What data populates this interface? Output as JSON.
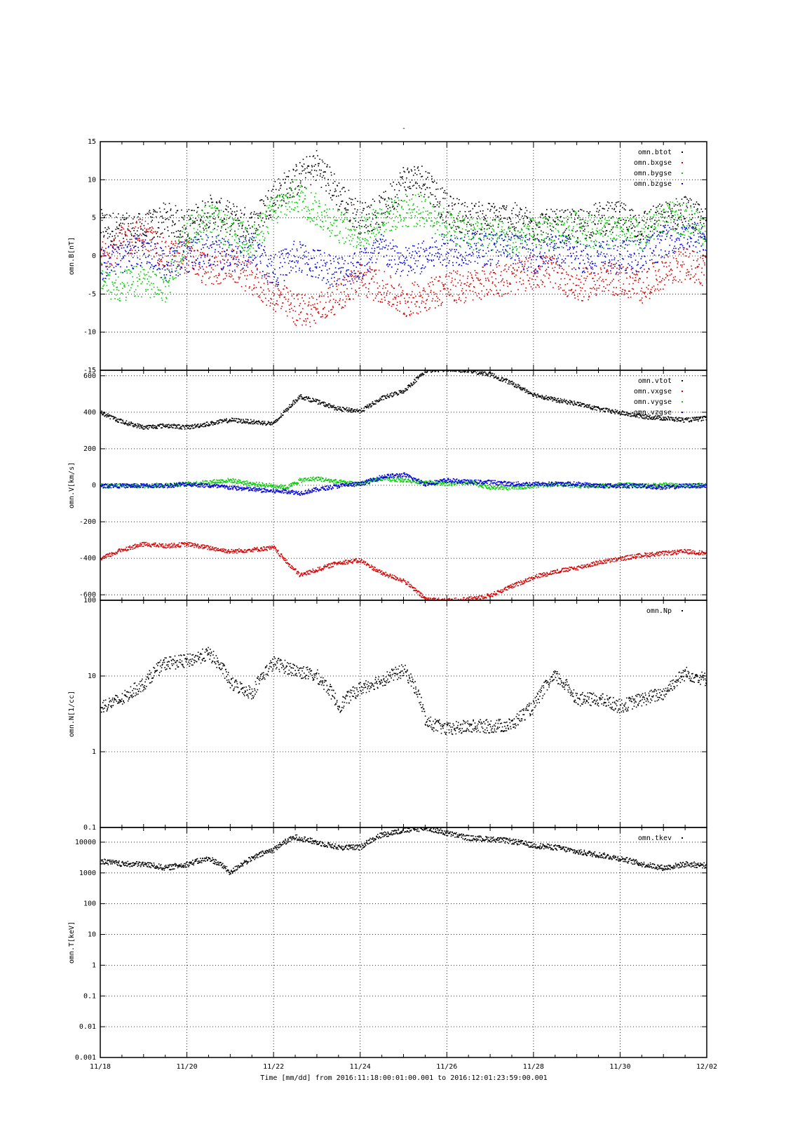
{
  "figure": {
    "title": "-",
    "xaxis_label": "Time [mm/dd]  from 2016:11:18:00:01:00.001  to  2016:12:01:23:59:00.001",
    "colors": {
      "black": "#000000",
      "red": "#d40000",
      "green": "#00cc00",
      "blue": "#0000dd"
    }
  },
  "chart_data": [
    {
      "type": "scatter",
      "ylabel": "omn.B[nT]",
      "ylim": [
        -15,
        15
      ],
      "yscale": "linear",
      "yticks": [
        -15,
        -10,
        -5,
        0,
        5,
        10,
        15
      ],
      "ytick_labels": [
        "-15",
        "-10",
        "-5",
        "0",
        "5",
        "10",
        "15"
      ],
      "x_range_days": [
        0,
        14
      ],
      "grid": true,
      "legend_position": "top-right",
      "series": [
        {
          "name": "omn.btot",
          "color": "#000000",
          "x": [
            0,
            0.5,
            1,
            1.5,
            2,
            2.5,
            3,
            3.5,
            4,
            4.5,
            5,
            5.5,
            6,
            6.5,
            7,
            7.5,
            8,
            8.5,
            9,
            9.5,
            10,
            10.5,
            11,
            11.5,
            12,
            12.5,
            13,
            13.5,
            14
          ],
          "values": [
            4,
            3.5,
            3.5,
            5,
            4,
            6,
            5,
            4,
            8,
            10,
            12,
            8,
            5,
            6,
            10,
            10,
            6,
            5,
            5,
            5,
            4,
            4,
            4,
            5,
            5,
            4,
            5,
            6,
            4
          ]
        },
        {
          "name": "omn.bxgse",
          "color": "#d40000",
          "x": [
            0,
            0.5,
            1,
            1.5,
            2,
            2.5,
            3,
            3.5,
            4,
            4.5,
            5,
            5.5,
            6,
            6.5,
            7,
            7.5,
            8,
            8.5,
            9,
            9.5,
            10,
            10.5,
            11,
            11.5,
            12,
            12.5,
            13,
            13.5,
            14
          ],
          "values": [
            0,
            2,
            3,
            0,
            0,
            -2,
            -1,
            -3,
            -5,
            -7,
            -7,
            -5,
            -3,
            -4,
            -6,
            -5,
            -4,
            -4,
            -3,
            -3,
            -2,
            -2,
            -4,
            -3,
            -3,
            -4,
            -2,
            -1,
            -2
          ]
        },
        {
          "name": "omn.bygse",
          "color": "#00cc00",
          "x": [
            0,
            0.5,
            1,
            1.5,
            2,
            2.5,
            3,
            3.5,
            4,
            4.5,
            5,
            5.5,
            6,
            6.5,
            7,
            7.5,
            8,
            8.5,
            9,
            9.5,
            10,
            10.5,
            11,
            11.5,
            12,
            12.5,
            13,
            13.5,
            14
          ],
          "values": [
            -3,
            -4,
            -3,
            -4,
            3,
            5,
            3,
            2,
            6,
            8,
            6,
            4,
            3,
            5,
            6,
            6,
            4,
            3,
            3,
            2,
            3,
            3,
            4,
            3,
            3,
            3,
            5,
            5,
            3
          ]
        },
        {
          "name": "omn.bzgse",
          "color": "#0000dd",
          "x": [
            0,
            0.5,
            1,
            1.5,
            2,
            2.5,
            3,
            3.5,
            4,
            4.5,
            5,
            5.5,
            6,
            6.5,
            7,
            7.5,
            8,
            8.5,
            9,
            9.5,
            10,
            10.5,
            11,
            11.5,
            12,
            12.5,
            13,
            13.5,
            14
          ],
          "values": [
            -1,
            0,
            1,
            -1,
            0,
            1,
            0,
            1,
            -2,
            0,
            -1,
            -2,
            -1,
            1,
            -1,
            0,
            1,
            1,
            1,
            1,
            0,
            1,
            0,
            0,
            0,
            0,
            2,
            3,
            2
          ]
        }
      ]
    },
    {
      "type": "scatter",
      "ylabel": "omn.V[km/s]",
      "ylim": [
        -630,
        630
      ],
      "yscale": "linear",
      "yticks": [
        -600,
        -400,
        -200,
        0,
        200,
        400,
        600
      ],
      "ytick_labels": [
        "-600",
        "-400",
        "-200",
        "0",
        "200",
        "400",
        "600"
      ],
      "x_range_days": [
        0,
        14
      ],
      "grid": true,
      "legend_position": "top-right",
      "series": [
        {
          "name": "omn.vtot",
          "color": "#000000",
          "x": [
            0,
            0.5,
            1,
            1.5,
            2,
            2.5,
            3,
            3.5,
            4,
            4.3,
            4.6,
            5,
            5.5,
            6,
            6.5,
            7,
            7.5,
            8,
            8.5,
            9,
            9.5,
            10,
            10.5,
            11,
            11.5,
            12,
            12.5,
            13,
            13.5,
            14
          ],
          "values": [
            400,
            350,
            320,
            330,
            320,
            340,
            360,
            350,
            340,
            420,
            490,
            460,
            420,
            410,
            480,
            520,
            630,
            640,
            630,
            610,
            560,
            500,
            470,
            450,
            420,
            400,
            380,
            370,
            360,
            370
          ]
        },
        {
          "name": "omn.vxgse",
          "color": "#d40000",
          "x": [
            0,
            0.5,
            1,
            1.5,
            2,
            2.5,
            3,
            3.5,
            4,
            4.3,
            4.6,
            5,
            5.5,
            6,
            6.5,
            7,
            7.5,
            8,
            8.5,
            9,
            9.5,
            10,
            10.5,
            11,
            11.5,
            12,
            12.5,
            13,
            13.5,
            14
          ],
          "values": [
            -400,
            -350,
            -320,
            -330,
            -320,
            -340,
            -360,
            -350,
            -340,
            -420,
            -490,
            -460,
            -420,
            -410,
            -480,
            -520,
            -620,
            -630,
            -620,
            -600,
            -550,
            -500,
            -470,
            -450,
            -420,
            -400,
            -380,
            -370,
            -360,
            -370
          ]
        },
        {
          "name": "omn.vygse",
          "color": "#00cc00",
          "x": [
            0,
            0.5,
            1,
            1.5,
            2,
            2.5,
            3,
            3.5,
            4,
            4.3,
            4.6,
            5,
            5.5,
            6,
            6.5,
            7,
            7.5,
            8,
            8.5,
            9,
            9.5,
            10,
            10.5,
            11,
            11.5,
            12,
            12.5,
            13,
            13.5,
            14
          ],
          "values": [
            0,
            0,
            0,
            5,
            10,
            20,
            30,
            10,
            0,
            -10,
            30,
            40,
            20,
            10,
            40,
            30,
            20,
            10,
            20,
            -10,
            -10,
            0,
            10,
            0,
            0,
            5,
            0,
            5,
            0,
            5
          ]
        },
        {
          "name": "omn.vzgse",
          "color": "#0000dd",
          "x": [
            0,
            0.5,
            1,
            1.5,
            2,
            2.5,
            3,
            3.5,
            4,
            4.3,
            4.6,
            5,
            5.5,
            6,
            6.5,
            7,
            7.5,
            8,
            8.5,
            9,
            9.5,
            10,
            10.5,
            11,
            11.5,
            12,
            12.5,
            13,
            13.5,
            14
          ],
          "values": [
            0,
            0,
            0,
            0,
            10,
            0,
            -10,
            -20,
            -30,
            -30,
            -40,
            -20,
            0,
            10,
            50,
            60,
            10,
            30,
            20,
            20,
            10,
            10,
            10,
            10,
            0,
            0,
            0,
            -10,
            0,
            0
          ]
        }
      ]
    },
    {
      "type": "scatter",
      "ylabel": "omn.N[1/cc]",
      "ylim": [
        0.1,
        100
      ],
      "yscale": "log",
      "yticks": [
        0.1,
        1,
        10,
        100
      ],
      "ytick_labels": [
        "0.1",
        "1",
        "10",
        "100"
      ],
      "x_range_days": [
        0,
        14
      ],
      "grid": true,
      "legend_position": "top-right",
      "series": [
        {
          "name": "omn.Np",
          "color": "#000000",
          "x": [
            0,
            0.5,
            1,
            1.5,
            2,
            2.5,
            3,
            3.5,
            4,
            4.5,
            5,
            5.5,
            6,
            6.5,
            7,
            7.5,
            8,
            8.5,
            9,
            9.5,
            10,
            10.5,
            11,
            11.5,
            12,
            12.5,
            13,
            13.5,
            14
          ],
          "values": [
            4,
            5,
            8,
            15,
            16,
            20,
            8,
            6,
            15,
            12,
            10,
            4,
            7,
            9,
            12,
            2.5,
            2.0,
            2.2,
            2.2,
            2.3,
            4.0,
            10,
            5,
            5,
            4,
            5,
            6,
            11,
            9
          ]
        }
      ]
    },
    {
      "type": "scatter",
      "ylabel": "omn.T[keV]",
      "ylim": [
        0.001,
        30000
      ],
      "yscale": "log",
      "yticks": [
        0.001,
        0.01,
        0.1,
        1,
        10,
        100,
        1000,
        10000
      ],
      "ytick_labels": [
        "0.001",
        "0.01",
        "0.1",
        "1",
        "10",
        "100",
        "1000",
        "10000"
      ],
      "x_range_days": [
        0,
        14
      ],
      "grid": true,
      "legend_position": "top-right",
      "series": [
        {
          "name": "omn.tkev",
          "color": "#000000",
          "x": [
            0,
            0.5,
            1,
            1.5,
            2,
            2.5,
            3,
            3.5,
            4,
            4.5,
            5,
            5.5,
            6,
            6.5,
            7,
            7.5,
            8,
            8.5,
            9,
            9.5,
            10,
            10.5,
            11,
            11.5,
            12,
            12.5,
            13,
            13.5,
            14
          ],
          "values": [
            2500,
            2000,
            2000,
            1500,
            2000,
            3000,
            1000,
            3000,
            6000,
            15000,
            10000,
            7000,
            7000,
            18000,
            25000,
            30000,
            20000,
            14000,
            13000,
            11000,
            8000,
            7000,
            5000,
            4000,
            3000,
            2000,
            1500,
            2000,
            1800
          ]
        }
      ]
    }
  ],
  "xaxis": {
    "tick_labels": [
      "11/18",
      "11/20",
      "11/22",
      "11/24",
      "11/26",
      "11/28",
      "11/30",
      "12/02"
    ]
  }
}
